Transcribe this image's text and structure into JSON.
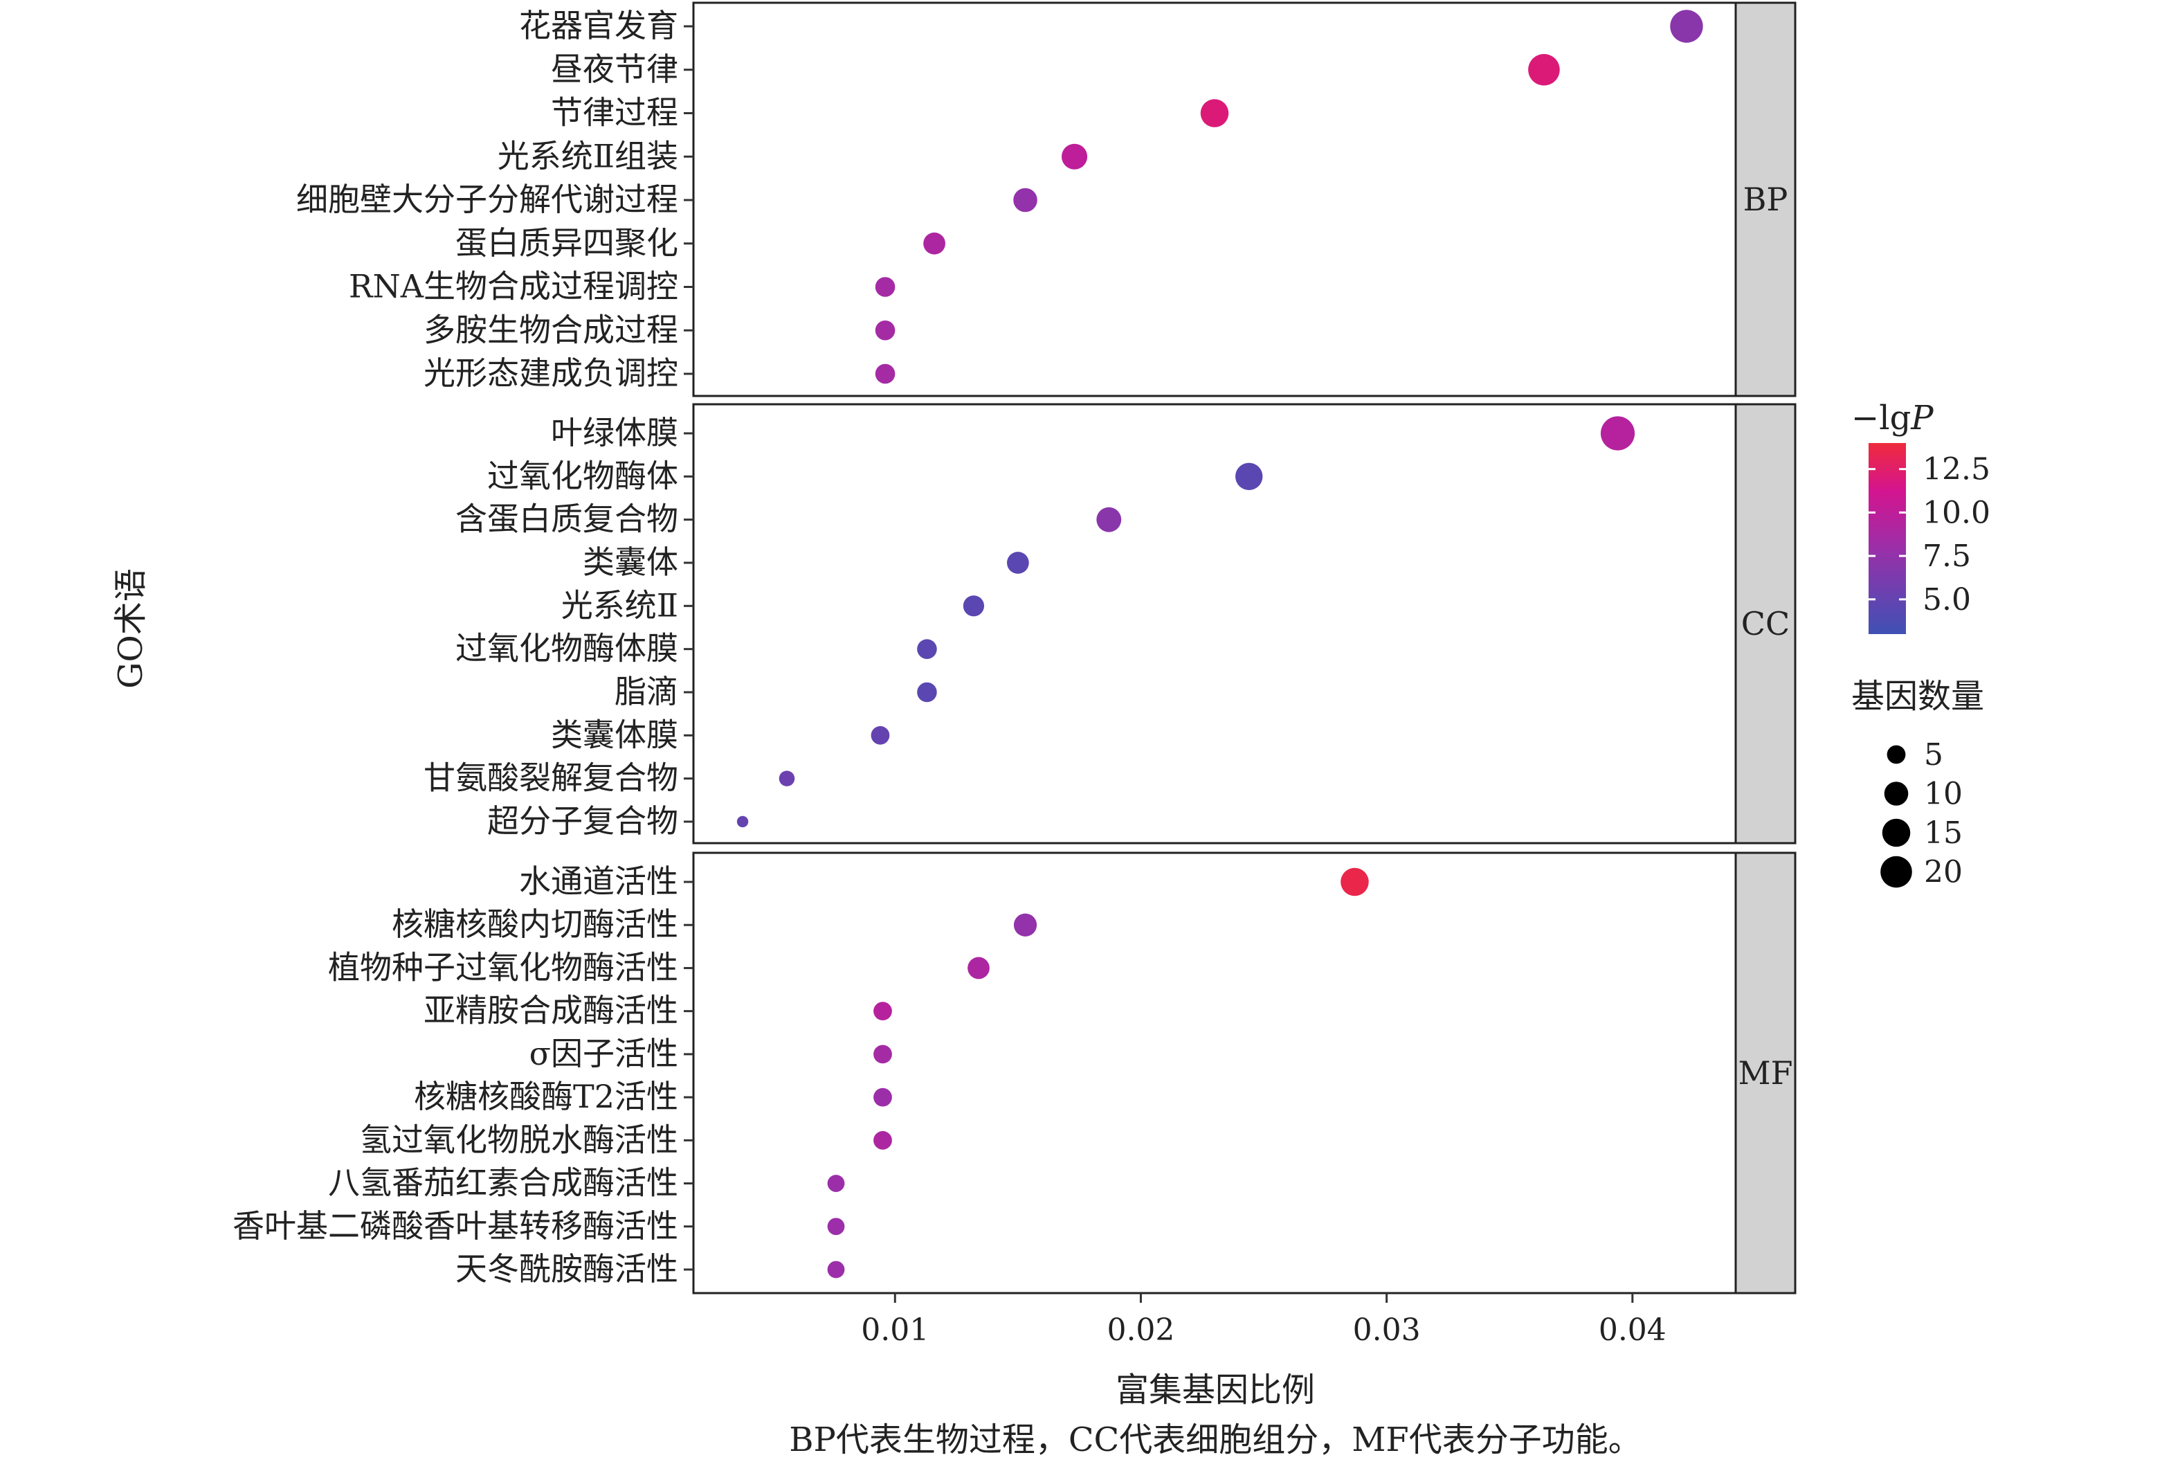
{
  "chart_data": {
    "type": "scatter",
    "xlabel": "富集基因比例",
    "ylabel": "GO术语",
    "caption": "BP代表生物过程，CC代表细胞组分，MF代表分子功能。",
    "x_ticks": [
      "0.01",
      "0.02",
      "0.03",
      "0.04"
    ],
    "x_tick_values": [
      0.01,
      0.02,
      0.03,
      0.04
    ],
    "xlim": [
      0.0018,
      0.0442
    ],
    "grid": true,
    "color_legend": {
      "title_prefix": "−lg",
      "title_italic": "P",
      "ticks": [
        "12.5",
        "10.0",
        "7.5",
        "5.0"
      ],
      "tick_values": [
        12.5,
        10.0,
        7.5,
        5.0
      ],
      "range": [
        3.0,
        14.0
      ],
      "colors": [
        "#3f51b5",
        "#9b2fa9",
        "#d4148f",
        "#ef2b3c"
      ]
    },
    "size_legend": {
      "title": "基因数量",
      "labels": [
        "5",
        "10",
        "15",
        "20"
      ],
      "values": [
        5,
        10,
        15,
        20
      ]
    },
    "panels": [
      {
        "name": "BP",
        "terms": [
          {
            "term": "花器官发育",
            "x": 0.0422,
            "lgP": 7.0,
            "count": 22
          },
          {
            "term": "昼夜节律",
            "x": 0.0364,
            "lgP": 12.0,
            "count": 20
          },
          {
            "term": "节律过程",
            "x": 0.023,
            "lgP": 12.0,
            "count": 15
          },
          {
            "term": "光系统Ⅱ组装",
            "x": 0.0173,
            "lgP": 10.0,
            "count": 12
          },
          {
            "term": "细胞壁大分子分解代谢过程",
            "x": 0.0153,
            "lgP": 7.5,
            "count": 10
          },
          {
            "term": "蛋白质异四聚化",
            "x": 0.0116,
            "lgP": 9.0,
            "count": 8
          },
          {
            "term": "RNA生物合成过程调控",
            "x": 0.0096,
            "lgP": 8.5,
            "count": 6
          },
          {
            "term": "多胺生物合成过程",
            "x": 0.0096,
            "lgP": 8.5,
            "count": 6
          },
          {
            "term": "光形态建成负调控",
            "x": 0.0096,
            "lgP": 8.5,
            "count": 6
          }
        ]
      },
      {
        "name": "CC",
        "terms": [
          {
            "term": "叶绿体膜",
            "x": 0.0394,
            "lgP": 9.5,
            "count": 24
          },
          {
            "term": "过氧化物酶体",
            "x": 0.0244,
            "lgP": 4.5,
            "count": 14
          },
          {
            "term": "含蛋白质复合物",
            "x": 0.0187,
            "lgP": 7.0,
            "count": 11
          },
          {
            "term": "类囊体",
            "x": 0.015,
            "lgP": 4.5,
            "count": 8
          },
          {
            "term": "光系统Ⅱ",
            "x": 0.0132,
            "lgP": 4.5,
            "count": 7
          },
          {
            "term": "过氧化物酶体膜",
            "x": 0.0113,
            "lgP": 4.5,
            "count": 6
          },
          {
            "term": "脂滴",
            "x": 0.0113,
            "lgP": 4.5,
            "count": 6
          },
          {
            "term": "类囊体膜",
            "x": 0.0094,
            "lgP": 5.0,
            "count": 5
          },
          {
            "term": "甘氨酸裂解复合物",
            "x": 0.0056,
            "lgP": 5.5,
            "count": 3
          },
          {
            "term": "超分子复合物",
            "x": 0.0038,
            "lgP": 5.0,
            "count": 1
          }
        ]
      },
      {
        "name": "MF",
        "terms": [
          {
            "term": "水通道活性",
            "x": 0.0287,
            "lgP": 13.5,
            "count": 15
          },
          {
            "term": "核糖核酸内切酶活性",
            "x": 0.0153,
            "lgP": 7.5,
            "count": 9
          },
          {
            "term": "植物种子过氧化物酶活性",
            "x": 0.0134,
            "lgP": 9.0,
            "count": 8
          },
          {
            "term": "亚精胺合成酶活性",
            "x": 0.0095,
            "lgP": 9.5,
            "count": 5
          },
          {
            "term": "σ因子活性",
            "x": 0.0095,
            "lgP": 8.5,
            "count": 5
          },
          {
            "term": "核糖核酸酶T2活性",
            "x": 0.0095,
            "lgP": 8.0,
            "count": 5
          },
          {
            "term": "氢过氧化物脱水酶活性",
            "x": 0.0095,
            "lgP": 9.0,
            "count": 5
          },
          {
            "term": "八氢番茄红素合成酶活性",
            "x": 0.0076,
            "lgP": 8.0,
            "count": 4
          },
          {
            "term": "香叶基二磷酸香叶基转移酶活性",
            "x": 0.0076,
            "lgP": 8.0,
            "count": 4
          },
          {
            "term": "天冬酰胺酶活性",
            "x": 0.0076,
            "lgP": 8.0,
            "count": 4
          }
        ]
      }
    ]
  }
}
